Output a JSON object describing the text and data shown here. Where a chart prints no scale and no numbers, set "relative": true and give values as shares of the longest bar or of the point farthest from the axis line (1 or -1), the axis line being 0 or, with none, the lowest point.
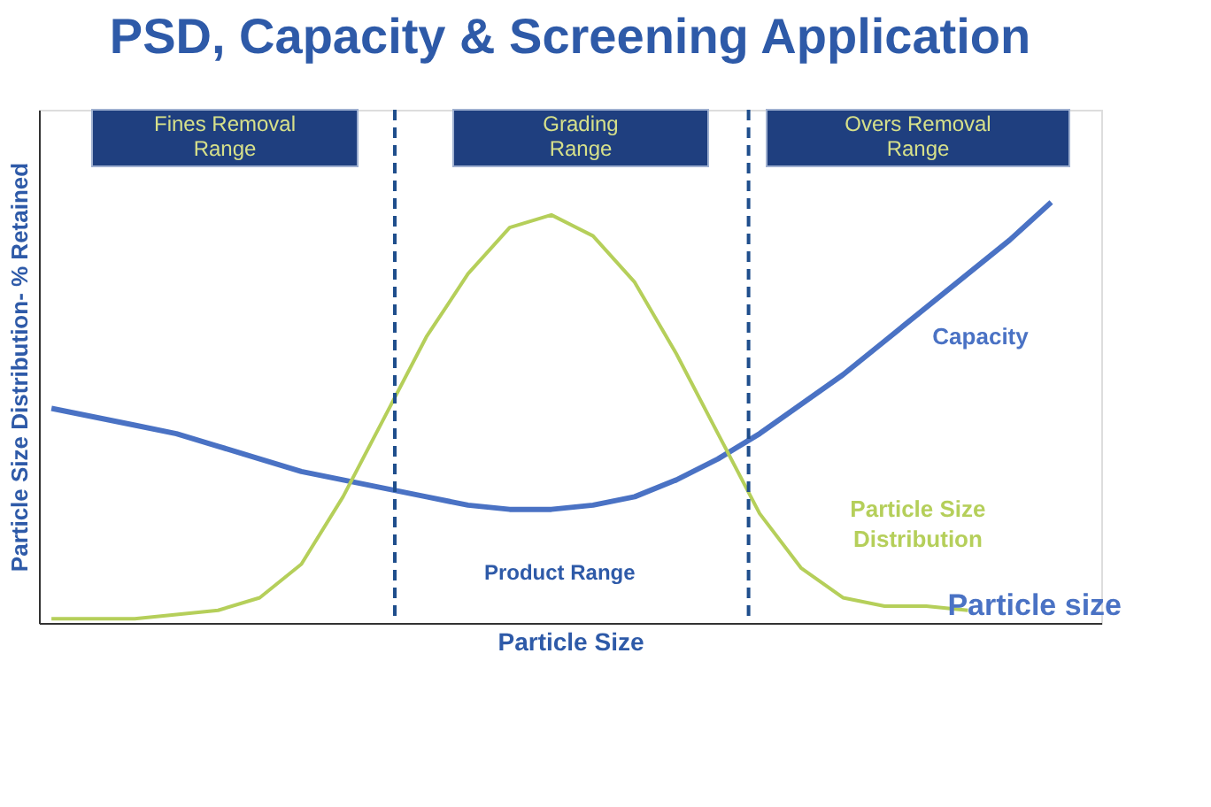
{
  "chart_data": {
    "type": "line",
    "title": "PSD, Capacity & Screening Application",
    "xlabel": "Particle Size",
    "ylabel": "Particle Size Distribution- % Retained",
    "relative": true,
    "grid": false,
    "tick_labels": false,
    "line_style": "solid",
    "categories": [
      null,
      null,
      null,
      null,
      null,
      null,
      null,
      null,
      null,
      null,
      null,
      null,
      null,
      null,
      null,
      null,
      null,
      null,
      null,
      null,
      null,
      null,
      null,
      null,
      null
    ],
    "series": [
      {
        "name": "Capacity",
        "color": "#4a72c4",
        "values": [
          0.51,
          0.49,
          0.47,
          0.45,
          0.42,
          0.39,
          0.36,
          0.34,
          0.32,
          0.3,
          0.28,
          0.27,
          0.27,
          0.28,
          0.3,
          0.34,
          0.39,
          0.45,
          0.52,
          0.59,
          0.67,
          0.75,
          0.83,
          0.91,
          1.0
        ]
      },
      {
        "name": "Particle Size Distribution",
        "color": "#b5cf5a",
        "values": [
          0.01,
          0.01,
          0.01,
          0.02,
          0.03,
          0.06,
          0.14,
          0.3,
          0.49,
          0.68,
          0.83,
          0.94,
          0.97,
          0.92,
          0.81,
          0.64,
          0.45,
          0.26,
          0.13,
          0.06,
          0.04,
          0.04,
          0.03,
          null,
          null
        ]
      }
    ],
    "annotations": [
      "Fines Removal Range",
      "Grading Range",
      "Overs Removal Range",
      "Product Range",
      "Particle size"
    ]
  }
}
